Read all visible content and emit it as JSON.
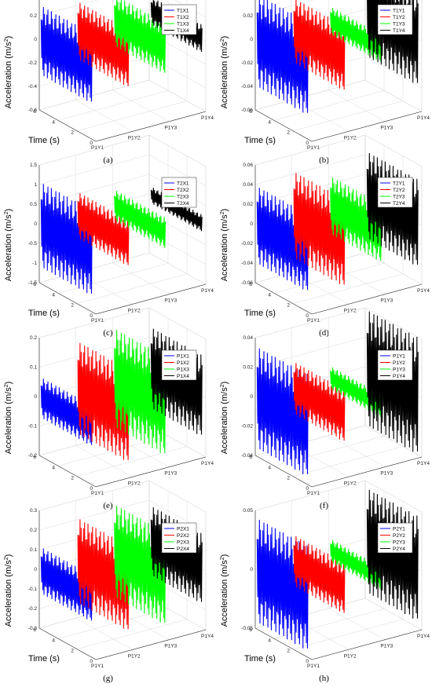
{
  "figure": {
    "colors": {
      "s1": "#0000ff",
      "s2": "#ff0000",
      "s3": "#00ff00",
      "s4": "#000000"
    }
  },
  "chart_data": [
    {
      "type": "line",
      "caption": "(a)",
      "zlabel": "Acceleration (m/s",
      "zlabel_sup": "2",
      "zlabel_close": ")",
      "xlabel": "Time (s)",
      "x_ticks": [
        "0",
        "2",
        "4",
        "6"
      ],
      "y_ticks": [
        "P1Y1",
        "P1Y2",
        "P1Y3",
        "P1Y4"
      ],
      "z_ticks": [
        "-0.6",
        "-0.4",
        "-0.2",
        "0",
        "0.2",
        "0.4"
      ],
      "zlim": [
        -0.6,
        0.4
      ],
      "series": [
        {
          "name": "T1X1",
          "amplitude": 0.3
        },
        {
          "name": "T1X2",
          "amplitude": 0.25
        },
        {
          "name": "T1X3",
          "amplitude": 0.22
        },
        {
          "name": "T1X4",
          "amplitude": 0.12
        }
      ]
    },
    {
      "type": "line",
      "caption": "(b)",
      "zlabel": "Acceleration (m/s",
      "zlabel_sup": "2",
      "zlabel_close": ")",
      "xlabel": "Time (s)",
      "x_ticks": [
        "0",
        "2",
        "4",
        "6"
      ],
      "y_ticks": [
        "P1Y1",
        "P1Y2",
        "P1Y3",
        "P1Y4"
      ],
      "z_ticks": [
        "-0.06",
        "-0.04",
        "-0.02",
        "0",
        "0.02",
        "0.04"
      ],
      "zlim": [
        -0.06,
        0.04
      ],
      "series": [
        {
          "name": "T1Y1",
          "amplitude": 0.04
        },
        {
          "name": "T1Y2",
          "amplitude": 0.028
        },
        {
          "name": "T1Y3",
          "amplitude": 0.012
        },
        {
          "name": "T1Y4",
          "amplitude": 0.04
        }
      ]
    },
    {
      "type": "line",
      "caption": "(c)",
      "zlabel": "Acceleration (m/s",
      "zlabel_sup": "2",
      "zlabel_close": ")",
      "xlabel": "Time (s)",
      "x_ticks": [
        "0",
        "2",
        "4",
        "6"
      ],
      "y_ticks": [
        "P1Y1",
        "P1Y2",
        "P1Y3",
        "P1Y4"
      ],
      "z_ticks": [
        "-1.5",
        "-1",
        "-0.5",
        "0",
        "0.5",
        "1",
        "1.5"
      ],
      "zlim": [
        -1.5,
        1.5
      ],
      "series": [
        {
          "name": "T2X1",
          "amplitude": 1.1
        },
        {
          "name": "T2X2",
          "amplitude": 0.6
        },
        {
          "name": "T2X3",
          "amplitude": 0.4
        },
        {
          "name": "T2X4",
          "amplitude": 0.22
        }
      ]
    },
    {
      "type": "line",
      "caption": "(d)",
      "zlabel": "Acceleration (m/s",
      "zlabel_sup": "2",
      "zlabel_close": ")",
      "xlabel": "Time (s)",
      "x_ticks": [
        "0",
        "2",
        "4",
        "6"
      ],
      "y_ticks": [
        "P1Y1",
        "P1Y2",
        "P1Y3",
        "P1Y4"
      ],
      "z_ticks": [
        "-0.06",
        "-0.04",
        "-0.02",
        "0",
        "0.02",
        "0.04",
        "0.06"
      ],
      "zlim": [
        -0.06,
        0.06
      ],
      "series": [
        {
          "name": "T2Y1",
          "amplitude": 0.04
        },
        {
          "name": "T2Y2",
          "amplitude": 0.045
        },
        {
          "name": "T2Y3",
          "amplitude": 0.03
        },
        {
          "name": "T2Y4",
          "amplitude": 0.045
        }
      ]
    },
    {
      "type": "line",
      "caption": "(e)",
      "zlabel": "Acceleration (m/s",
      "zlabel_sup": "2",
      "zlabel_close": ")",
      "xlabel": "",
      "x_ticks": [
        "0",
        "2",
        "4",
        "6"
      ],
      "y_ticks": [
        "P1Y1",
        "P1Y2",
        "P1Y3",
        "P1Y4"
      ],
      "z_ticks": [
        "-0.2",
        "-0.1",
        "0",
        "0.1",
        "0.2"
      ],
      "zlim": [
        -0.2,
        0.2
      ],
      "series": [
        {
          "name": "P1X1",
          "amplitude": 0.07
        },
        {
          "name": "P1X2",
          "amplitude": 0.16
        },
        {
          "name": "P1X3",
          "amplitude": 0.17
        },
        {
          "name": "P1X4",
          "amplitude": 0.14
        }
      ]
    },
    {
      "type": "line",
      "caption": "(f)",
      "zlabel": "Acceleration (m/s",
      "zlabel_sup": "2",
      "zlabel_close": ")",
      "xlabel": "",
      "x_ticks": [
        "0",
        "2",
        "4",
        "6"
      ],
      "y_ticks": [
        "P1Y1",
        "P1Y2",
        "P1Y3",
        "P1Y4"
      ],
      "z_ticks": [
        "-0.04",
        "-0.02",
        "0",
        "0.02",
        "0.04"
      ],
      "zlim": [
        -0.04,
        0.04
      ],
      "series": [
        {
          "name": "P1Y1",
          "amplitude": 0.035
        },
        {
          "name": "P1Y2",
          "amplitude": 0.018
        },
        {
          "name": "P1Y3",
          "amplitude": 0.008
        },
        {
          "name": "P1Y4",
          "amplitude": 0.04
        }
      ]
    },
    {
      "type": "line",
      "caption": "(g)",
      "zlabel": "Acceleration (m/s",
      "zlabel_sup": "2",
      "zlabel_close": ")",
      "xlabel": "Time (s)",
      "x_ticks": [
        "0",
        "2",
        "4",
        "6"
      ],
      "y_ticks": [
        "P1Y1",
        "P1Y2",
        "P1Y3",
        "P1Y4"
      ],
      "z_ticks": [
        "-0.3",
        "-0.2",
        "-0.1",
        "0",
        "0.1",
        "0.2",
        "0.3"
      ],
      "zlim": [
        -0.3,
        0.3
      ],
      "series": [
        {
          "name": "P2X1",
          "amplitude": 0.12
        },
        {
          "name": "P2X2",
          "amplitude": 0.22
        },
        {
          "name": "P2X3",
          "amplitude": 0.24
        },
        {
          "name": "P2X4",
          "amplitude": 0.18
        }
      ]
    },
    {
      "type": "line",
      "caption": "(h)",
      "zlabel": "Acceleration (m/s",
      "zlabel_sup": "2",
      "zlabel_close": ")",
      "xlabel": "Time (s)",
      "x_ticks": [
        "0",
        "2",
        "4",
        "6"
      ],
      "y_ticks": [
        "P1Y1",
        "P1Y2",
        "P1Y3",
        "P1Y4"
      ],
      "z_ticks": [
        "-0.05",
        "0",
        "0.05"
      ],
      "zlim": [
        -0.05,
        0.05
      ],
      "series": [
        {
          "name": "P2Y1",
          "amplitude": 0.045
        },
        {
          "name": "P2Y2",
          "amplitude": 0.022
        },
        {
          "name": "P2Y3",
          "amplitude": 0.01
        },
        {
          "name": "P2Y4",
          "amplitude": 0.045
        }
      ]
    }
  ]
}
